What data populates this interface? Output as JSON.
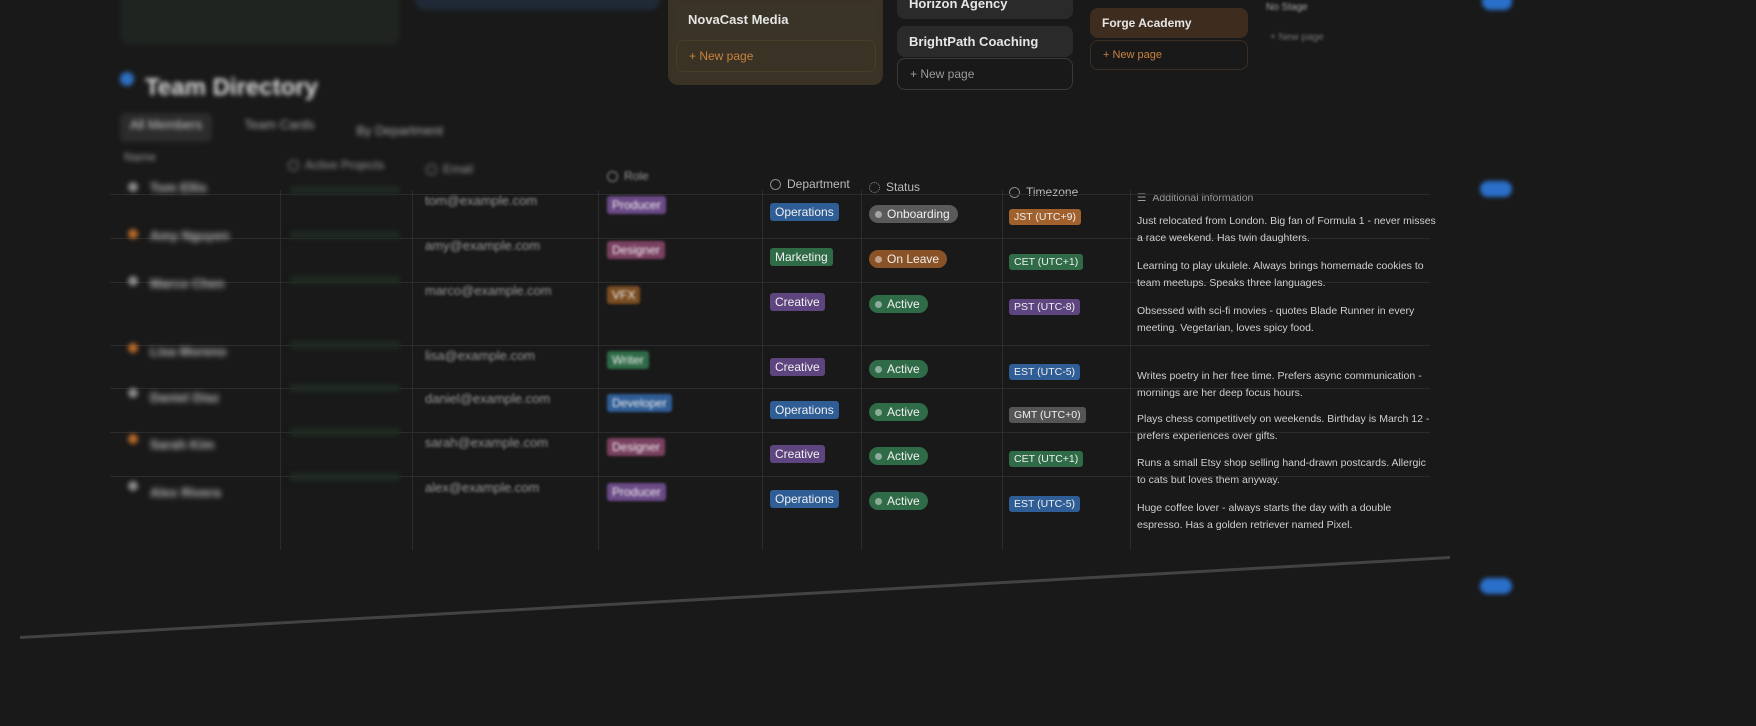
{
  "board": {
    "columns": [
      {
        "cards": [
          "NovaCast Media"
        ],
        "new_page": "New page",
        "color": "#3a3224"
      },
      {
        "cards": [
          "Horizon Agency",
          "BrightPath Coaching"
        ],
        "new_page": "New page",
        "color": "#252525"
      },
      {
        "cards": [
          "Forge Academy"
        ],
        "new_page": "New page",
        "color": "#33261b"
      },
      {
        "title": "No Stage",
        "new_page": "New page",
        "color": "#222222"
      }
    ]
  },
  "page": {
    "title": "Team Directory"
  },
  "views": [
    "All Members",
    "Team Cards",
    "By Department"
  ],
  "table": {
    "headers": {
      "name": "Name",
      "projects": "Active Projects",
      "email": "Email",
      "role": "Role",
      "department": "Department",
      "status": "Status",
      "timezone": "Timezone",
      "info": "Additional information"
    },
    "rows": [
      {
        "name": "Tom Ellis",
        "email": "tom@example.com",
        "role": "Producer",
        "role_color": "#6b4a86",
        "department": "Operations",
        "dept_color": "#2f5d95",
        "status": "Onboarding",
        "status_color": "#5a5a5a",
        "timezone": "JST (UTC+9)",
        "tz_color": "#a0612d",
        "info": "Just relocated from London. Big fan of Formula 1 - never misses a race weekend. Has twin daughters."
      },
      {
        "name": "Amy Nguyen",
        "email": "amy@example.com",
        "role": "Designer",
        "role_color": "#7a4060",
        "department": "Marketing",
        "dept_color": "#2f6b47",
        "status": "On Leave",
        "status_color": "#8a5227",
        "timezone": "CET (UTC+1)",
        "tz_color": "#2f6b47",
        "info": "Learning to play ukulele. Always brings homemade cookies to team meetups. Speaks three languages."
      },
      {
        "name": "Marco Chen",
        "email": "marco@example.com",
        "role": "VFX",
        "role_color": "#7a4d22",
        "department": "Creative",
        "dept_color": "#5e4580",
        "status": "Active",
        "status_color": "#2f6b47",
        "timezone": "PST (UTC-8)",
        "tz_color": "#5e4580",
        "info": "Obsessed with sci-fi movies - quotes Blade Runner in every meeting. Vegetarian, loves spicy food."
      },
      {
        "name": "Lisa Moreno",
        "email": "lisa@example.com",
        "role": "Writer",
        "role_color": "#2f6b47",
        "department": "Creative",
        "dept_color": "#5e4580",
        "status": "Active",
        "status_color": "#2f6b47",
        "timezone": "EST (UTC-5)",
        "tz_color": "#2f5d95",
        "info": "Writes poetry in her free time. Prefers async communication - mornings are her deep focus hours."
      },
      {
        "name": "Daniel Diaz",
        "email": "daniel@example.com",
        "role": "Developer",
        "role_color": "#2f5d95",
        "department": "Operations",
        "dept_color": "#2f5d95",
        "status": "Active",
        "status_color": "#2f6b47",
        "timezone": "GMT (UTC+0)",
        "tz_color": "#555555",
        "info": "Plays chess competitively on weekends. Birthday is March 12 - prefers experiences over gifts."
      },
      {
        "name": "Sarah Kim",
        "email": "sarah@example.com",
        "role": "Designer",
        "role_color": "#7a4060",
        "department": "Creative",
        "dept_color": "#5e4580",
        "status": "Active",
        "status_color": "#2f6b47",
        "timezone": "CET (UTC+1)",
        "tz_color": "#2f6b47",
        "info": "Runs a small Etsy shop selling hand-drawn postcards. Allergic to cats but loves them anyway."
      },
      {
        "name": "Alex Rivera",
        "email": "alex@example.com",
        "role": "Producer",
        "role_color": "#6b4a86",
        "department": "Operations",
        "dept_color": "#2f5d95",
        "status": "Active",
        "status_color": "#2f6b47",
        "timezone": "EST (UTC-5)",
        "tz_color": "#2f5d95",
        "info": "Huge coffee lover - always starts the day with a double espresso. Has a golden retriever named Pixel."
      }
    ]
  }
}
